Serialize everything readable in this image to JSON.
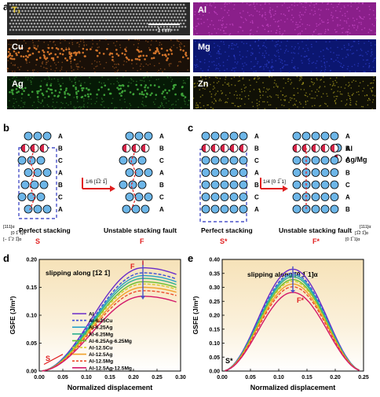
{
  "panels": {
    "a": "a",
    "b": "b",
    "c": "c",
    "d": "d",
    "e": "e"
  },
  "maps": [
    {
      "label": "T₁",
      "bg": "#2a2a2a",
      "dot": "#bbbbbb",
      "kind": "haadf",
      "scalebar": "1 nm"
    },
    {
      "label": "Al",
      "bg": "#8a1f8a",
      "dot": "#e45be4",
      "kind": "map"
    },
    {
      "label": "Cu",
      "bg": "#1a1008",
      "dot": "#d9782c",
      "kind": "map"
    },
    {
      "label": "Mg",
      "bg": "#0b1670",
      "dot": "#3c4ff0",
      "kind": "map"
    },
    {
      "label": "Ag",
      "bg": "#061a06",
      "dot": "#3fa63a",
      "kind": "map"
    },
    {
      "label": "Zn",
      "bg": "#101006",
      "dot": "#e3d42a",
      "kind": "map"
    }
  ],
  "stacking_b": {
    "layers": [
      "A",
      "B",
      "C",
      "A",
      "B",
      "C",
      "A"
    ],
    "layers_right": [
      "A",
      "B",
      "C",
      "A",
      "B",
      "C",
      "A"
    ],
    "arrow_label": "1/6 [1̅2 1̅]",
    "left_caption": "Perfect stacking",
    "right_caption": "Unstable stacking fault",
    "left_symbol": "S",
    "right_symbol": "F",
    "axes": [
      "[111]α",
      "[0 1̅ 1]α",
      "[− 1̅ 2 1̅]α"
    ]
  },
  "stacking_c": {
    "layers": [
      "A",
      "B",
      "C",
      "A",
      "B",
      "C",
      "A"
    ],
    "layers_right": [
      "A",
      "B",
      "C",
      "B",
      "C",
      "A",
      "B"
    ],
    "arrow_label": "1/4 [0 1̅ 1]",
    "left_caption": "Perfect stacking",
    "right_caption": "Unstable stacking fault",
    "left_symbol": "S*",
    "right_symbol": "F*",
    "legend_al": "Al",
    "legend_agmg": "Ag/Mg",
    "axes": [
      "[111]α",
      "[1̅2 1̅]α",
      "[0 1̅ 1]α"
    ]
  },
  "colors": {
    "atom": "#6db6e8",
    "solute": "#d9264a",
    "dash_box": "#4a52c8",
    "red": "#e01f1f"
  },
  "chart_data": [
    {
      "type": "line",
      "panel": "d",
      "title": "slipping along [1̅2 1̅]",
      "xlabel": "Normalized displacement",
      "ylabel": "GSFE (J/m²)",
      "xlim": [
        0.0,
        0.3
      ],
      "ylim": [
        0.0,
        0.2
      ],
      "xticks": [
        "0.00",
        "0.05",
        "0.10",
        "0.15",
        "0.20",
        "0.25",
        "0.30"
      ],
      "yticks": [
        "0.00",
        "0.05",
        "0.10",
        "0.15",
        "0.20"
      ],
      "x": [
        0.0,
        0.03,
        0.06,
        0.09,
        0.12,
        0.15,
        0.18,
        0.21,
        0.24,
        0.27,
        0.29
      ],
      "peak_label": "F",
      "start_label": "S",
      "series": [
        {
          "name": "Al",
          "color": "#6a2bc9",
          "dash": false,
          "peak": 0.185,
          "end": 0.17
        },
        {
          "name": "Al-6.25Cu",
          "color": "#3a4bd6",
          "dash": true,
          "peak": 0.176,
          "end": 0.162
        },
        {
          "name": "Al-6.25Ag",
          "color": "#28a2c9",
          "dash": false,
          "peak": 0.171,
          "end": 0.157
        },
        {
          "name": "Al-6.25Mg",
          "color": "#2fb08f",
          "dash": false,
          "peak": 0.166,
          "end": 0.152
        },
        {
          "name": "Al-6.25Ag-6.25Mg",
          "color": "#6abf2f",
          "dash": false,
          "peak": 0.16,
          "end": 0.147
        },
        {
          "name": "Al-12.5Cu",
          "color": "#d7c82a",
          "dash": true,
          "peak": 0.156,
          "end": 0.144
        },
        {
          "name": "Al-12.5Ag",
          "color": "#f0a12a",
          "dash": false,
          "peak": 0.15,
          "end": 0.139
        },
        {
          "name": "Al-12.5Mg",
          "color": "#ec4b2c",
          "dash": true,
          "peak": 0.144,
          "end": 0.133
        },
        {
          "name": "Al-12.5Ag-12.5Mg",
          "color": "#d3186a",
          "dash": false,
          "peak": 0.134,
          "end": 0.121
        }
      ]
    },
    {
      "type": "line",
      "panel": "e",
      "title": "slipping along [0 1̅ 1]α",
      "xlabel": "Normalized displacement",
      "ylabel": "GSFE (J/m²)",
      "xlim": [
        0.0,
        0.25
      ],
      "ylim": [
        0.0,
        0.4
      ],
      "xticks": [
        "0.00",
        "0.05",
        "0.10",
        "0.15",
        "0.20",
        "0.25"
      ],
      "yticks": [
        "0.00",
        "0.05",
        "0.10",
        "0.15",
        "0.20",
        "0.25",
        "0.30",
        "0.35",
        "0.40"
      ],
      "peak_label": "F*",
      "start_label": "S*",
      "series": [
        {
          "name": "Al",
          "color": "#6a2bc9",
          "dash": false,
          "peak": 0.365
        },
        {
          "name": "Al-6.25Cu",
          "color": "#3a4bd6",
          "dash": true,
          "peak": 0.352
        },
        {
          "name": "Al-6.25Ag",
          "color": "#28a2c9",
          "dash": false,
          "peak": 0.345
        },
        {
          "name": "Al-6.25Mg",
          "color": "#2fb08f",
          "dash": false,
          "peak": 0.338
        },
        {
          "name": "Al-6.25Ag-6.25Mg",
          "color": "#6abf2f",
          "dash": false,
          "peak": 0.328
        },
        {
          "name": "Al-12.5Cu",
          "color": "#d7c82a",
          "dash": true,
          "peak": 0.322
        },
        {
          "name": "Al-12.5Ag",
          "color": "#f0a12a",
          "dash": false,
          "peak": 0.312
        },
        {
          "name": "Al-12.5Mg",
          "color": "#ec4b2c",
          "dash": true,
          "peak": 0.302
        },
        {
          "name": "Al-12.5Ag-12.5Mg",
          "color": "#d3186a",
          "dash": false,
          "peak": 0.282
        }
      ]
    }
  ]
}
